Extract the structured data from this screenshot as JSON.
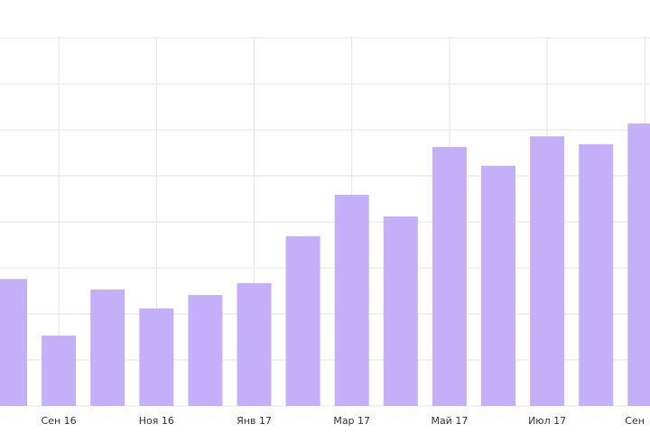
{
  "chart_data": {
    "type": "bar",
    "categories": [
      null,
      "Сен 16",
      null,
      "Ноя 16",
      null,
      "Янв 17",
      null,
      "Мар 17",
      null,
      "Май 17",
      null,
      "Июл 17",
      null,
      "Сен"
    ],
    "values": [
      2.76,
      1.53,
      2.53,
      2.12,
      2.41,
      2.67,
      3.69,
      4.59,
      4.12,
      5.63,
      5.22,
      5.86,
      5.69,
      6.14
    ],
    "color": "#c3b0f8",
    "ylim": [
      0,
      8
    ],
    "yticks": [
      0,
      1,
      2,
      3,
      4,
      5,
      6,
      7,
      8
    ],
    "grid": true
  }
}
